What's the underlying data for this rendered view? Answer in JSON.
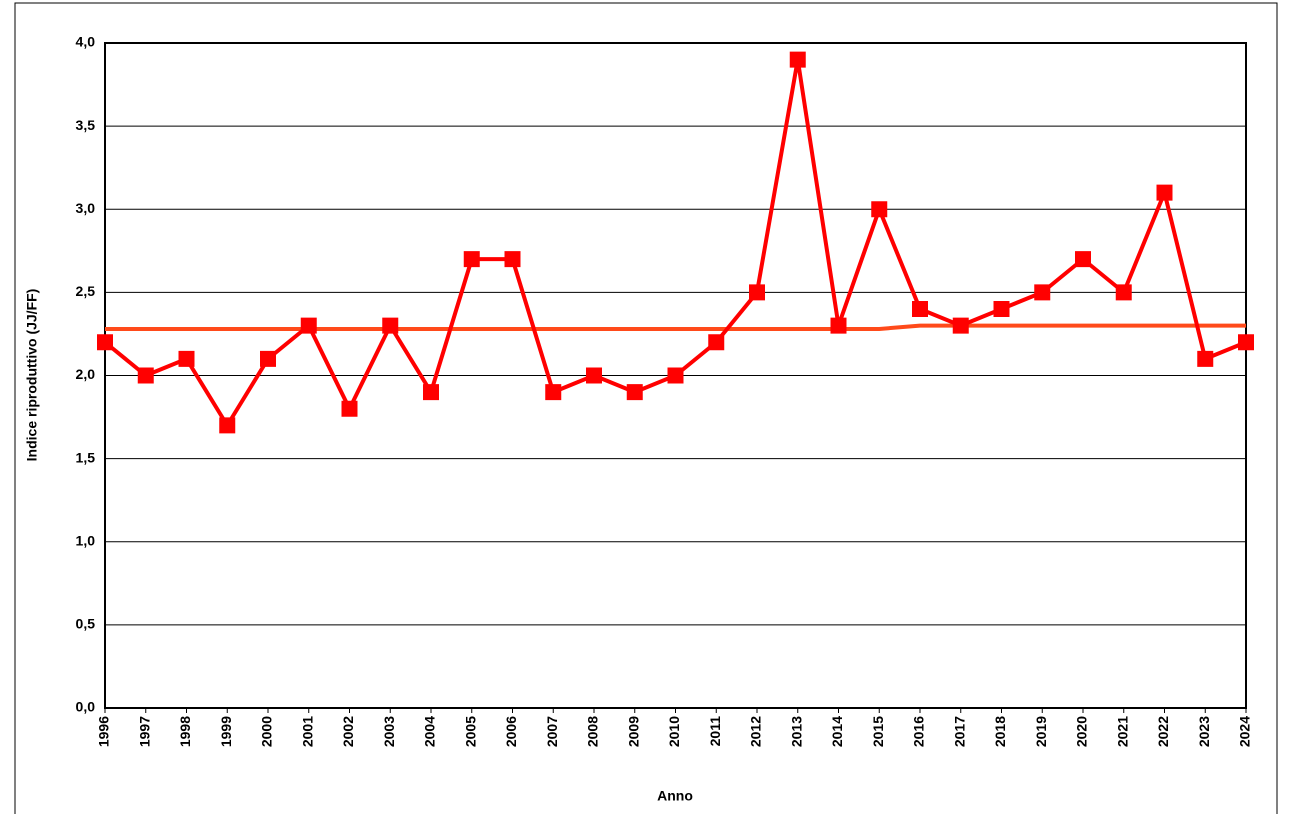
{
  "chart_data": {
    "type": "line",
    "xlabel": "Anno",
    "ylabel": "Indice riproduttivo (JJ/FF)",
    "categories": [
      "1996",
      "1997",
      "1998",
      "1999",
      "2000",
      "2001",
      "2002",
      "2003",
      "2004",
      "2005",
      "2006",
      "2007",
      "2008",
      "2009",
      "2010",
      "2011",
      "2012",
      "2013",
      "2014",
      "2015",
      "2016",
      "2017",
      "2018",
      "2019",
      "2020",
      "2021",
      "2022",
      "2023",
      "2024"
    ],
    "series": [
      {
        "color": "#ff0000",
        "marker": "square",
        "values": [
          2.2,
          2.0,
          2.1,
          1.7,
          2.1,
          2.3,
          1.8,
          2.3,
          1.9,
          2.7,
          2.7,
          1.9,
          2.0,
          1.9,
          2.0,
          2.2,
          2.5,
          3.9,
          2.3,
          3.0,
          2.4,
          2.3,
          2.4,
          2.5,
          2.7,
          2.5,
          3.1,
          2.1,
          2.2
        ]
      },
      {
        "color": "#ff4a1a",
        "marker": "none",
        "values": [
          2.28,
          2.28,
          2.28,
          2.28,
          2.28,
          2.28,
          2.28,
          2.28,
          2.28,
          2.28,
          2.28,
          2.28,
          2.28,
          2.28,
          2.28,
          2.28,
          2.28,
          2.28,
          2.28,
          2.28,
          2.3,
          2.3,
          2.3,
          2.3,
          2.3,
          2.3,
          2.3,
          2.3,
          2.3
        ]
      }
    ],
    "ylim": [
      0,
      4
    ],
    "yticks": [
      {
        "value": 0,
        "label": "0,0"
      },
      {
        "value": 0.5,
        "label": "0,5"
      },
      {
        "value": 1,
        "label": "1,0"
      },
      {
        "value": 1.5,
        "label": "1,5"
      },
      {
        "value": 2,
        "label": "2,0"
      },
      {
        "value": 2.5,
        "label": "2,5"
      },
      {
        "value": 3,
        "label": "3,0"
      },
      {
        "value": 3.5,
        "label": "3,5"
      },
      {
        "value": 4,
        "label": "4,0"
      }
    ],
    "grid": true
  }
}
